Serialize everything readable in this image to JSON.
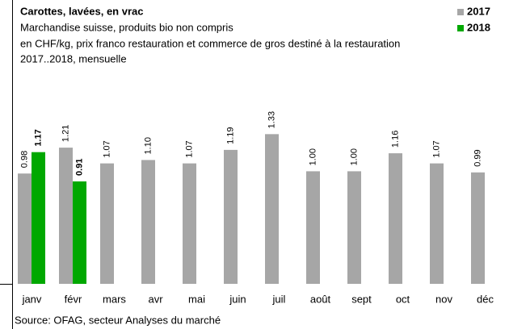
{
  "chart_data": {
    "type": "bar",
    "title": "Carottes, lavées, en vrac",
    "subtitle": [
      "Marchandise suisse, produits bio non compris",
      "en CHF/kg,  prix franco restauration et commerce de gros destiné à la restauration",
      "2017..2018, mensuelle"
    ],
    "source": "Source: OFAG, secteur Analyses du marché",
    "categories": [
      "janv",
      "févr",
      "mars",
      "avr",
      "mai",
      "juin",
      "juil",
      "août",
      "sept",
      "oct",
      "nov",
      "déc"
    ],
    "series": [
      {
        "name": "2017",
        "color": "#a6a6a6",
        "values": [
          0.98,
          1.21,
          1.07,
          1.1,
          1.07,
          1.19,
          1.33,
          1.0,
          1.0,
          1.16,
          1.07,
          0.99
        ],
        "value_labels": [
          "0.98",
          "1.21",
          "1.07",
          "1.10",
          "1.07",
          "1.19",
          "1.33",
          "1.00",
          "1.00",
          "1.16",
          "1.07",
          "0.99"
        ]
      },
      {
        "name": "2018",
        "color": "#00a800",
        "values": [
          1.17,
          0.91,
          null,
          null,
          null,
          null,
          null,
          null,
          null,
          null,
          null,
          null
        ],
        "value_labels": [
          "1.17",
          "0.91",
          null,
          null,
          null,
          null,
          null,
          null,
          null,
          null,
          null,
          null
        ]
      }
    ],
    "ylim": [
      0,
      2.5
    ],
    "legend": "top-right"
  }
}
